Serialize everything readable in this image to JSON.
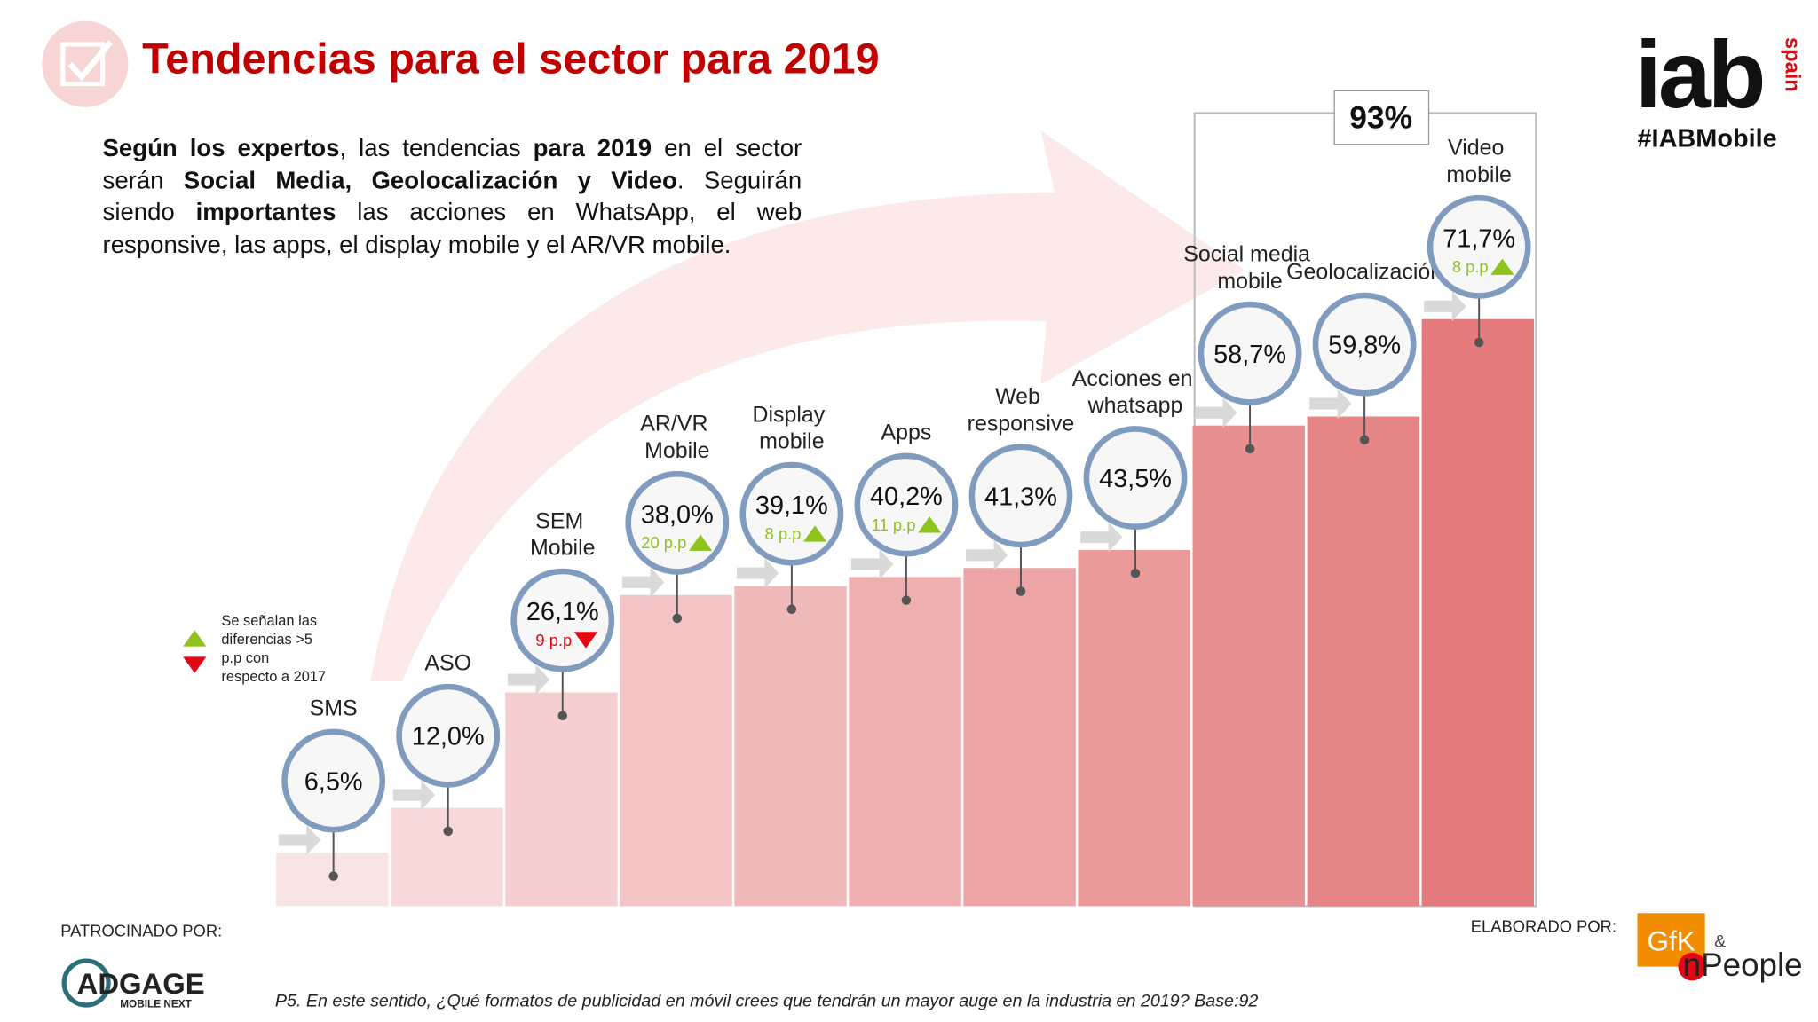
{
  "header": {
    "title": "Tendencias para el sector para 2019"
  },
  "intro": [
    {
      "text": "Según los expertos",
      "bold": true
    },
    {
      "text": ", las tendencias ",
      "bold": false
    },
    {
      "text": "para 2019",
      "bold": true
    },
    {
      "text": " en el sector serán ",
      "bold": false
    },
    {
      "text": "Social Media, Geolocalización y Video",
      "bold": true
    },
    {
      "text": ". Seguirán siendo ",
      "bold": false
    },
    {
      "text": "importantes",
      "bold": true
    },
    {
      "text": " las acciones en WhatsApp, el web responsive, las apps, el display mobile y el AR/VR mobile.",
      "bold": false
    }
  ],
  "logo": {
    "name": "iab",
    "country": "spain",
    "hashtag": "#IABMobile"
  },
  "legend_note": [
    "Se señalan las",
    "diferencias >5",
    "p.p con",
    "respecto a 2017"
  ],
  "chart_data": {
    "type": "bar",
    "categories": [
      "SMS",
      "ASO",
      "SEM Mobile",
      "AR/VR Mobile",
      "Display mobile",
      "Apps",
      "Web responsive",
      "Acciones en whatsapp",
      "Social media mobile",
      "Geolocalización",
      "Video mobile"
    ],
    "values": [
      6.5,
      12.0,
      26.1,
      38.0,
      39.1,
      40.2,
      41.3,
      43.5,
      58.7,
      59.8,
      71.7
    ],
    "value_labels": [
      "6,5%",
      "12,0%",
      "26,1%",
      "38,0%",
      "39,1%",
      "40,2%",
      "41,3%",
      "43,5%",
      "58,7%",
      "59,8%",
      "71,7%"
    ],
    "differences": [
      null,
      null,
      -9,
      20,
      8,
      11,
      null,
      null,
      null,
      null,
      8
    ],
    "difference_labels": [
      null,
      null,
      "9 p.p",
      "20 p.p",
      "8 p.p",
      "11 p.p",
      null,
      null,
      null,
      null,
      "8 p.p"
    ],
    "color_range": [
      "#f9e4e4",
      "#e37a7c"
    ],
    "up_color": "#8dc21f",
    "down_color": "#e30613",
    "highlight": {
      "value": 93,
      "label": "93%"
    }
  },
  "footer": {
    "sponsor_label": "PATROCINADO POR:",
    "sponsor_name": "ADGAGE",
    "sponsor_tag": "MOBILE NEXT",
    "author_label": "ELABORADO POR:",
    "author_name": "GfK",
    "author_and": "&",
    "author_partner": "nPeople",
    "question": "P5. En este sentido, ¿Qué formatos de publicidad en móvil crees que tendrán un mayor auge en la industria en 2019? Base:92"
  }
}
